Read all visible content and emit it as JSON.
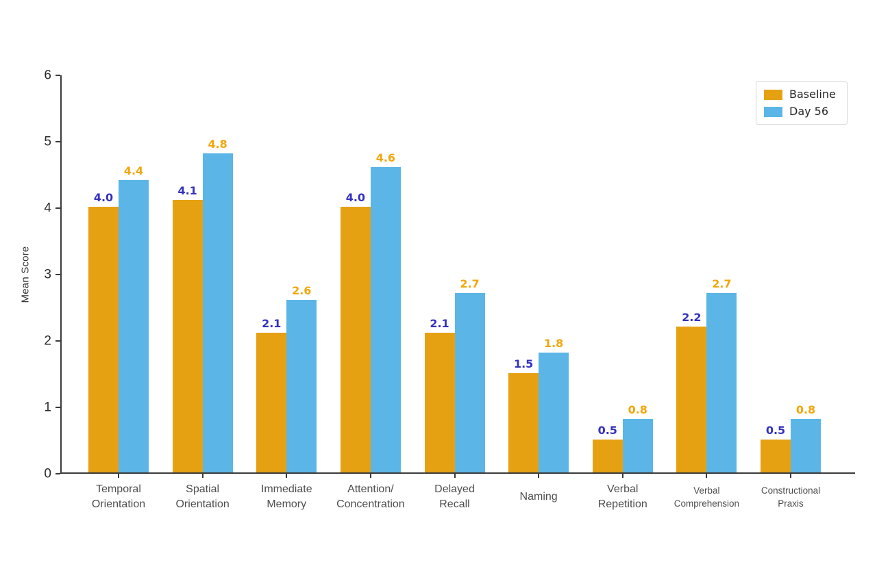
{
  "chart_data": {
    "type": "bar",
    "title": "",
    "xlabel": "",
    "ylabel": "Mean Score",
    "ylim": [
      0,
      6
    ],
    "yticks": [
      0,
      1,
      2,
      3,
      4,
      5,
      6
    ],
    "grid": false,
    "legend_position": "upper right",
    "background_color": "#ffffff",
    "axis_color": "#3a3a3a",
    "categories": [
      "Temporal\nOrientation",
      "Spatial\nOrientation",
      "Immediate\nMemory",
      "Attention/\nConcentration",
      "Delayed\nRecall",
      "Naming",
      "Verbal\nRepetition",
      "Verbal\nComprehension",
      "Constructional\nPraxis"
    ],
    "series": [
      {
        "name": "Baseline",
        "color": "#e6a112",
        "value_label_color": "#3331be",
        "values": [
          4.0,
          4.1,
          2.1,
          4.0,
          2.1,
          1.5,
          0.5,
          2.2,
          0.5
        ]
      },
      {
        "name": "Day 56",
        "color": "#5bb6e7",
        "value_label_color": "#f2a608",
        "values": [
          4.4,
          4.8,
          2.6,
          4.6,
          2.7,
          1.8,
          0.8,
          2.7,
          0.8
        ]
      }
    ]
  }
}
